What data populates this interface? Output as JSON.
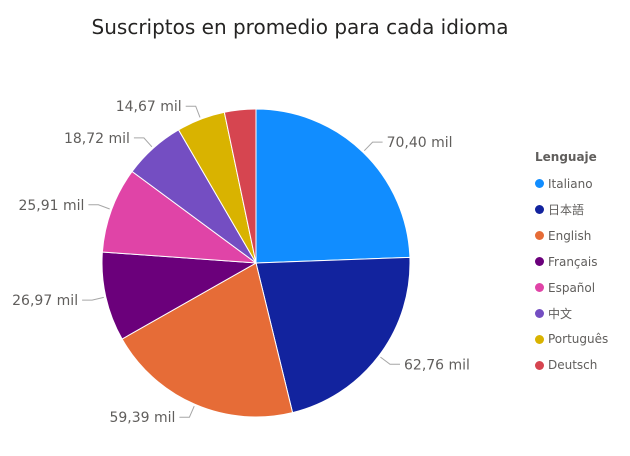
{
  "chart_data": {
    "type": "pie",
    "title": "Suscriptos en promedio para cada idioma",
    "legend_title": "Lenguaje",
    "legend_position": "right",
    "slices": [
      {
        "name": "Italiano",
        "value": 70.4,
        "label": "70,40 mil",
        "color": "#118DFF"
      },
      {
        "name": "日本語",
        "value": 62.76,
        "label": "62,76 mil",
        "color": "#12239E"
      },
      {
        "name": "English",
        "value": 59.39,
        "label": "59,39 mil",
        "color": "#E66C37"
      },
      {
        "name": "Français",
        "value": 26.97,
        "label": "26,97 mil",
        "color": "#6B007B"
      },
      {
        "name": "Español",
        "value": 25.91,
        "label": "25,91 mil",
        "color": "#E044A7"
      },
      {
        "name": "中文",
        "value": 18.72,
        "label": "18,72 mil",
        "color": "#744EC2"
      },
      {
        "name": "Português",
        "value": 14.67,
        "label": "14,67 mil",
        "color": "#D9B300"
      },
      {
        "name": "Deutsch",
        "value": 9.5,
        "label": "",
        "color": "#D64550"
      }
    ]
  }
}
